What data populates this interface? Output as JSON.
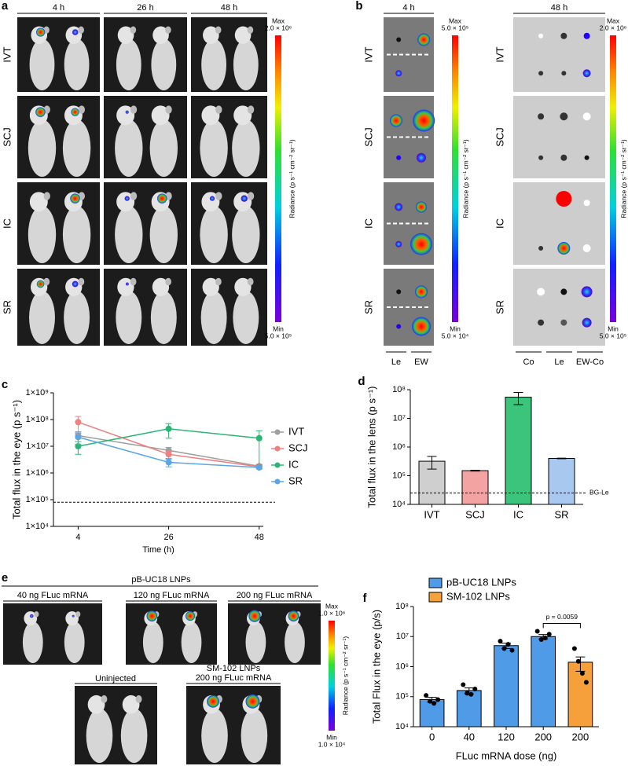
{
  "panels": {
    "a": {
      "label": "a",
      "columns": [
        "4 h",
        "26 h",
        "48 h"
      ],
      "rows": [
        "IVT",
        "SCJ",
        "IC",
        "SR"
      ],
      "colorbar": {
        "max": "Max",
        "max_value": "2.0 × 10⁶",
        "title": "Radiance (p s⁻¹ cm⁻² sr⁻¹)",
        "min": "Min",
        "min_value": "5.0 × 10⁵"
      }
    },
    "b": {
      "label": "b",
      "sections": [
        {
          "header": "4 h",
          "rows": [
            "IVT",
            "SCJ",
            "IC",
            "SR"
          ],
          "columns": [
            "Le",
            "EW"
          ],
          "colorbar": {
            "max": "Max",
            "max_value": "5.0 × 10⁵",
            "title": "Radiance (p s⁻¹ cm⁻² sr⁻¹)",
            "min": "Min",
            "min_value": "5.0 × 10⁴"
          }
        },
        {
          "header": "48 h",
          "rows": [
            "IVT",
            "SCJ",
            "IC",
            "SR"
          ],
          "columns": [
            "Co",
            "Le",
            "EW-Co"
          ],
          "colorbar": {
            "max": "Max",
            "max_value": "2.0 × 10⁶",
            "title": "Radiance (p s⁻¹ cm⁻² sr⁻¹)",
            "min": "Min",
            "min_value": "5.0 × 10⁵"
          }
        }
      ]
    },
    "e": {
      "label": "e",
      "group_top": "pB-UC18 LNPs",
      "top_doses": [
        "40 ng FLuc mRNA",
        "120 ng FLuc mRNA",
        "200 ng FLuc mRNA"
      ],
      "uninjected": "Uninjected",
      "group_bottom": "SM-102 LNPs",
      "bottom_dose": "200 ng FLuc mRNA",
      "colorbar": {
        "max": "Max",
        "max_value": "1.0 × 10⁶",
        "title": "Radiance (p s⁻¹ cm⁻² sr⁻¹)",
        "min": "Min",
        "min_value": "1.0 × 10⁴"
      }
    }
  },
  "chart_data": [
    {
      "type": "line",
      "panel_label": "c",
      "x_label": "Time (h)",
      "y_label": "Total flux in the eye (p s⁻¹)",
      "x": [
        4,
        26,
        48
      ],
      "xlim": [
        -2,
        49
      ],
      "xticks": [
        4,
        26,
        48
      ],
      "log_y": true,
      "ylim": [
        10000,
        1000000000
      ],
      "yticks": [
        {
          "value": 10000,
          "label": "1×10⁴"
        },
        {
          "value": 100000,
          "label": "1×10⁵"
        },
        {
          "value": 1000000,
          "label": "1×10⁶"
        },
        {
          "value": 10000000,
          "label": "1×10⁷"
        },
        {
          "value": 100000000,
          "label": "1×10⁸"
        },
        {
          "value": 1000000000,
          "label": "1×10⁹"
        }
      ],
      "reference_line": 80000,
      "legend": "right",
      "series": [
        {
          "name": "IVT",
          "color": "#9e9e9e",
          "values": [
            25000000,
            7000000,
            1800000
          ],
          "errors": [
            10000000,
            2000000,
            300000
          ]
        },
        {
          "name": "SCJ",
          "color": "#f08080",
          "values": [
            80000000,
            5000000,
            1700000
          ],
          "errors": [
            50000000,
            1500000,
            200000
          ]
        },
        {
          "name": "IC",
          "color": "#2bb573",
          "values": [
            10000000,
            45000000,
            20000000
          ],
          "errors": [
            5000000,
            25000000,
            18000000
          ]
        },
        {
          "name": "SR",
          "color": "#5aa5e6",
          "values": [
            22000000,
            2500000,
            1600000
          ],
          "errors": [
            10000000,
            800000,
            200000
          ]
        }
      ]
    },
    {
      "type": "bar",
      "panel_label": "d",
      "y_label": "Total flux in the lens (p s⁻¹)",
      "categories": [
        "IVT",
        "SCJ",
        "IC",
        "SR"
      ],
      "values": [
        320000,
        150000,
        55000000,
        400000
      ],
      "errors": [
        150000,
        5000,
        25000000,
        10000
      ],
      "colors": [
        "#cfcfcf",
        "#f4a3a3",
        "#3cc47c",
        "#a9c8f0"
      ],
      "log_y": true,
      "ylim": [
        10000,
        100000000
      ],
      "yticks": [
        {
          "value": 10000,
          "label": "10⁴"
        },
        {
          "value": 100000,
          "label": "10⁵"
        },
        {
          "value": 1000000,
          "label": "10⁶"
        },
        {
          "value": 10000000,
          "label": "10⁷"
        },
        {
          "value": 100000000,
          "label": "10⁸"
        }
      ],
      "reference_line": 25000,
      "reference_label": "BG-Le"
    },
    {
      "type": "grouped_bar",
      "panel_label": "f",
      "x_label": "FLuc mRNA dose (ng)",
      "y_label": "Total Flux in the eye (p/s)",
      "categories": [
        "0",
        "40",
        "120",
        "200",
        "200"
      ],
      "log_y": true,
      "ylim": [
        10000,
        100000000
      ],
      "yticks": [
        {
          "value": 10000,
          "label": "10⁴"
        },
        {
          "value": 100000,
          "label": "10⁵"
        },
        {
          "value": 1000000,
          "label": "10⁶"
        },
        {
          "value": 10000000,
          "label": "10⁷"
        },
        {
          "value": 100000000,
          "label": "10⁸"
        }
      ],
      "legend": "top",
      "series": [
        {
          "name": "pB-UC18 LNPs",
          "color": "#4f9be8",
          "values": [
            80000,
            160000,
            5000000,
            10000000,
            null
          ],
          "errors": [
            15000,
            35000,
            1000000,
            1700000,
            null
          ],
          "points": [
            [
              110000,
              70000,
              60000,
              80000
            ],
            [
              250000,
              130000,
              120000,
              180000
            ],
            [
              7000000,
              4000000,
              5500000,
              3500000
            ],
            [
              15000000,
              8000000,
              9000000,
              12000000
            ],
            null
          ]
        },
        {
          "name": "SM-102 LNPs",
          "color": "#f5a03a",
          "values": [
            null,
            null,
            null,
            null,
            1400000
          ],
          "errors": [
            null,
            null,
            null,
            null,
            700000
          ],
          "points": [
            null,
            null,
            null,
            null,
            [
              4000000,
              1500000,
              600000,
              300000
            ]
          ]
        }
      ],
      "annotation": "p = 0.0059"
    }
  ]
}
